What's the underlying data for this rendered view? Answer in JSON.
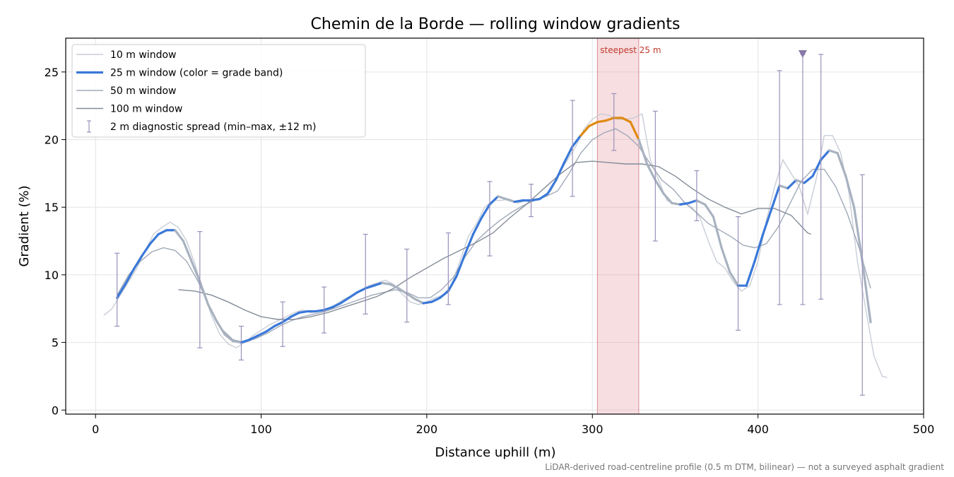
{
  "chart_data": {
    "type": "line",
    "title": "Chemin de la Borde — rolling window gradients",
    "xlabel": "Distance uphill (m)",
    "ylabel": "Gradient (%)",
    "xlim": [
      -18,
      500
    ],
    "ylim": [
      -0.3,
      27.5
    ],
    "xticks": [
      0,
      100,
      200,
      300,
      400,
      500
    ],
    "yticks": [
      0,
      5,
      10,
      15,
      20,
      25
    ],
    "grid": true,
    "legend_position": "top-left",
    "note": "LiDAR-derived road-centreline profile (0.5 m DTM, bilinear) — not a surveyed asphalt gradient",
    "highlight": {
      "label": "steepest 25 m",
      "x_range": [
        303,
        328
      ],
      "color": "#e8a9b0"
    },
    "marker": {
      "x": 427,
      "y": 26.3,
      "shape": "triangle-down",
      "color": "#8878a8"
    },
    "colors": {
      "grade_band_low": "#3a78d8",
      "grade_band_high": "#e08a10",
      "w10": "#c8cdd6",
      "w50": "#a0aab8",
      "w100": "#848c98",
      "diag": "#9a90ba"
    },
    "series": [
      {
        "name": "10 m window",
        "x": [
          5,
          10,
          15,
          20,
          25,
          30,
          35,
          40,
          45,
          50,
          55,
          60,
          65,
          70,
          75,
          80,
          85,
          90,
          95,
          100,
          105,
          110,
          115,
          120,
          125,
          130,
          135,
          140,
          145,
          150,
          155,
          160,
          165,
          170,
          175,
          180,
          185,
          190,
          195,
          200,
          205,
          210,
          215,
          220,
          225,
          230,
          235,
          240,
          245,
          250,
          255,
          260,
          265,
          270,
          275,
          280,
          285,
          290,
          295,
          300,
          305,
          310,
          315,
          320,
          325,
          330,
          335,
          340,
          345,
          350,
          355,
          360,
          365,
          370,
          375,
          380,
          385,
          390,
          395,
          400,
          405,
          410,
          415,
          420,
          425,
          430,
          435,
          440,
          445,
          450,
          455,
          460,
          465,
          470,
          475,
          478
        ],
        "values": [
          7.0,
          7.5,
          8.5,
          9.5,
          10.5,
          11.8,
          13.0,
          13.5,
          13.9,
          13.5,
          12.5,
          10.8,
          8.8,
          7.0,
          5.6,
          4.9,
          4.6,
          5.0,
          5.5,
          5.9,
          6.3,
          6.6,
          6.9,
          7.2,
          7.4,
          7.2,
          7.3,
          7.5,
          7.8,
          8.2,
          8.5,
          8.8,
          9.2,
          9.4,
          9.6,
          9.3,
          8.6,
          8.0,
          7.8,
          8.0,
          8.3,
          8.5,
          9.3,
          11.0,
          12.8,
          13.8,
          15.0,
          15.5,
          15.5,
          15.6,
          15.3,
          15.5,
          15.6,
          15.7,
          16.2,
          17.5,
          18.5,
          19.5,
          20.8,
          21.5,
          21.9,
          21.8,
          21.5,
          21.5,
          21.6,
          21.9,
          18.5,
          17.0,
          15.5,
          15.2,
          15.3,
          15.0,
          14.2,
          12.5,
          11.0,
          10.5,
          9.5,
          8.8,
          9.2,
          11.0,
          14.0,
          16.5,
          18.5,
          17.5,
          16.5,
          14.5,
          17.0,
          20.3,
          20.3,
          19.0,
          16.0,
          11.0,
          7.5,
          4.0,
          2.5,
          2.4
        ]
      },
      {
        "name": "25 m window (color = grade band)",
        "x": [
          13,
          18,
          23,
          28,
          33,
          38,
          43,
          48,
          53,
          58,
          63,
          68,
          73,
          78,
          83,
          88,
          93,
          98,
          103,
          108,
          113,
          118,
          123,
          128,
          133,
          138,
          143,
          148,
          153,
          158,
          163,
          168,
          173,
          178,
          183,
          188,
          193,
          198,
          203,
          208,
          213,
          218,
          223,
          228,
          233,
          238,
          243,
          248,
          253,
          258,
          263,
          268,
          273,
          278,
          283,
          288,
          293,
          298,
          303,
          308,
          313,
          318,
          323,
          328,
          333,
          338,
          343,
          348,
          353,
          358,
          363,
          368,
          373,
          378,
          383,
          388,
          393,
          398,
          403,
          408,
          413,
          418,
          423,
          428,
          433,
          438,
          443,
          448,
          453,
          458,
          463,
          468
        ],
        "values": [
          8.3,
          9.3,
          10.4,
          11.4,
          12.3,
          13.0,
          13.3,
          13.3,
          12.5,
          11.0,
          9.5,
          7.8,
          6.6,
          5.6,
          5.1,
          5.0,
          5.2,
          5.5,
          5.8,
          6.2,
          6.5,
          6.9,
          7.2,
          7.3,
          7.3,
          7.4,
          7.6,
          7.9,
          8.3,
          8.7,
          9.0,
          9.2,
          9.4,
          9.3,
          9.0,
          8.6,
          8.2,
          7.9,
          8.0,
          8.3,
          8.8,
          9.9,
          11.5,
          13.0,
          14.2,
          15.2,
          15.8,
          15.6,
          15.4,
          15.5,
          15.5,
          15.6,
          16.0,
          17.0,
          18.3,
          19.5,
          20.3,
          21.0,
          21.3,
          21.4,
          21.6,
          21.6,
          21.3,
          20.0,
          18.2,
          17.0,
          16.0,
          15.3,
          15.2,
          15.3,
          15.5,
          15.2,
          14.3,
          12.0,
          10.2,
          9.2,
          9.2,
          11.0,
          13.0,
          14.8,
          16.6,
          16.4,
          17.0,
          16.8,
          17.3,
          18.5,
          19.2,
          19.0,
          17.3,
          15.0,
          11.0,
          6.5
        ]
      },
      {
        "name": "50 m window",
        "x": [
          13,
          20,
          27,
          34,
          41,
          48,
          55,
          62,
          69,
          76,
          83,
          90,
          97,
          104,
          111,
          118,
          125,
          132,
          139,
          146,
          153,
          160,
          167,
          174,
          181,
          188,
          195,
          202,
          209,
          216,
          223,
          230,
          237,
          244,
          251,
          258,
          265,
          272,
          279,
          286,
          293,
          300,
          307,
          314,
          321,
          328,
          335,
          342,
          349,
          356,
          363,
          370,
          377,
          384,
          391,
          398,
          405,
          412,
          419,
          426,
          433,
          440,
          447,
          454,
          461,
          468
        ],
        "values": [
          8.5,
          10.0,
          11.0,
          11.7,
          12.0,
          11.8,
          11.0,
          9.5,
          7.5,
          6.0,
          5.2,
          5.0,
          5.3,
          5.7,
          6.2,
          6.6,
          6.9,
          7.1,
          7.3,
          7.6,
          7.9,
          8.2,
          8.5,
          8.7,
          8.9,
          8.7,
          8.3,
          8.3,
          8.9,
          9.8,
          11.3,
          12.5,
          13.3,
          14.0,
          14.6,
          15.1,
          15.5,
          15.8,
          16.2,
          17.5,
          19.0,
          20.0,
          20.5,
          20.8,
          20.3,
          19.5,
          18.2,
          17.0,
          16.3,
          15.3,
          14.6,
          13.8,
          13.3,
          12.8,
          12.2,
          12.0,
          12.3,
          13.5,
          15.2,
          16.9,
          17.8,
          17.8,
          16.5,
          14.5,
          12.0,
          9.0
        ]
      },
      {
        "name": "100 m window",
        "x": [
          50,
          60,
          70,
          80,
          90,
          100,
          110,
          120,
          130,
          140,
          150,
          160,
          170,
          180,
          190,
          200,
          210,
          220,
          230,
          240,
          250,
          260,
          270,
          280,
          290,
          300,
          310,
          320,
          330,
          340,
          350,
          360,
          370,
          380,
          390,
          400,
          410,
          420,
          430,
          432
        ],
        "values": [
          8.9,
          8.8,
          8.5,
          8.0,
          7.4,
          6.9,
          6.7,
          6.7,
          6.9,
          7.2,
          7.6,
          8.0,
          8.4,
          9.0,
          9.8,
          10.5,
          11.2,
          11.8,
          12.4,
          13.1,
          14.2,
          15.2,
          16.3,
          17.4,
          18.3,
          18.4,
          18.3,
          18.2,
          18.2,
          18.0,
          17.3,
          16.4,
          15.6,
          15.0,
          14.5,
          14.9,
          14.9,
          14.4,
          13.1,
          13.0
        ]
      },
      {
        "name": "2 m diagnostic spread (min–max, ±12 m)",
        "x": [
          13,
          63,
          88,
          113,
          138,
          163,
          188,
          213,
          238,
          263,
          288,
          313,
          338,
          363,
          388,
          413,
          427,
          438,
          463
        ],
        "low": [
          6.2,
          4.6,
          3.7,
          4.7,
          5.7,
          7.1,
          6.5,
          7.8,
          11.4,
          14.3,
          15.8,
          19.2,
          12.5,
          14.0,
          5.9,
          7.8,
          7.8,
          8.2,
          1.1
        ],
        "high": [
          11.6,
          13.2,
          6.2,
          8.0,
          9.1,
          13.0,
          11.9,
          13.1,
          16.9,
          16.7,
          22.9,
          23.4,
          22.1,
          17.7,
          14.3,
          25.1,
          26.3,
          26.3,
          17.4
        ]
      }
    ]
  }
}
